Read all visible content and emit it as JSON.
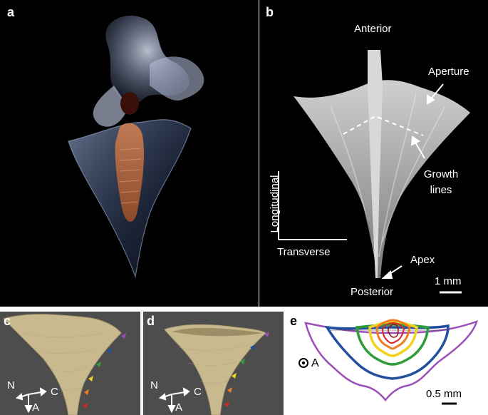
{
  "panels": {
    "a": {
      "label": "a"
    },
    "b": {
      "label": "b",
      "anterior": "Anterior",
      "aperture": "Aperture",
      "growth_line1": "Growth",
      "growth_line2": "lines",
      "longitudinal": "Longitudinal",
      "transverse": "Transverse",
      "apex": "Apex",
      "posterior": "Posterior",
      "scale": "1 mm"
    },
    "c": {
      "label": "c",
      "axis_n": "N",
      "axis_c": "C",
      "axis_a": "A"
    },
    "d": {
      "label": "d",
      "axis_n": "N",
      "axis_c": "C",
      "axis_a": "A"
    },
    "e": {
      "label": "e",
      "axis_a": "A",
      "scale": "0.5 mm"
    }
  },
  "colors": {
    "violet": "#9b4fb8",
    "blue": "#1f4f9e",
    "green": "#2f9e3a",
    "yellow": "#f2d21b",
    "orange": "#ef7d22",
    "red": "#d42a26",
    "dark_red": "#8a1414"
  }
}
